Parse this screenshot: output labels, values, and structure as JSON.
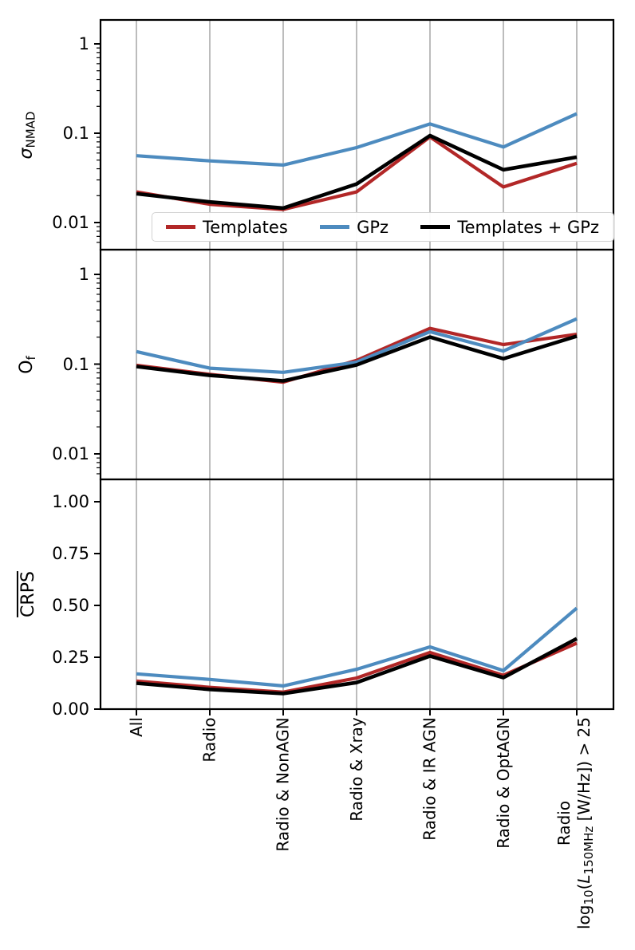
{
  "chart_data": [
    {
      "type": "line",
      "panel": "top",
      "ylabel": "sigma_NMAD",
      "ylabel_parts": {
        "symbol": "σ",
        "subscript": "NMAD"
      },
      "yscale": "log",
      "ylim": [
        0.005,
        1.8
      ],
      "ytick_labels": [
        "1",
        "0.1",
        "0.01"
      ],
      "ytick_values": [
        1,
        0.1,
        0.01
      ],
      "grid": "vertical-gridlines-on",
      "categories": [
        "All",
        "Radio",
        "Radio & NonAGN",
        "Radio & Xray",
        "Radio & IR AGN",
        "Radio & OptAGN",
        "Radio log10(L150MHz [W/Hz]) > 25"
      ],
      "series": [
        {
          "name": "Templates",
          "color": "#b22727",
          "values": [
            0.022,
            0.016,
            0.014,
            0.022,
            0.091,
            0.025,
            0.046
          ]
        },
        {
          "name": "GPz",
          "color": "#4d8bbf",
          "values": [
            0.056,
            0.049,
            0.044,
            0.069,
            0.127,
            0.07,
            0.165
          ]
        },
        {
          "name": "Templates + GPz",
          "color": "#000000",
          "values": [
            0.021,
            0.017,
            0.0145,
            0.027,
            0.094,
            0.039,
            0.054
          ]
        }
      ],
      "legend_position": "lower center"
    },
    {
      "type": "line",
      "panel": "middle",
      "ylabel": "O_f",
      "ylabel_parts": {
        "symbol": "O",
        "subscript": "f"
      },
      "yscale": "log",
      "ylim": [
        0.005,
        1.8
      ],
      "ytick_labels": [
        "1",
        "0.1",
        "0.01"
      ],
      "ytick_values": [
        1,
        0.1,
        0.01
      ],
      "grid": "vertical-gridlines-on",
      "categories": [
        "All",
        "Radio",
        "Radio & NonAGN",
        "Radio & Xray",
        "Radio & IR AGN",
        "Radio & OptAGN",
        "Radio log10(L150MHz [W/Hz]) > 25"
      ],
      "series": [
        {
          "name": "Templates",
          "color": "#b22727",
          "values": [
            0.097,
            0.077,
            0.063,
            0.11,
            0.25,
            0.165,
            0.215
          ]
        },
        {
          "name": "GPz",
          "color": "#4d8bbf",
          "values": [
            0.138,
            0.09,
            0.081,
            0.105,
            0.23,
            0.14,
            0.32
          ]
        },
        {
          "name": "Templates + GPz",
          "color": "#000000",
          "values": [
            0.094,
            0.075,
            0.065,
            0.098,
            0.2,
            0.115,
            0.205
          ]
        }
      ]
    },
    {
      "type": "line",
      "panel": "bottom",
      "ylabel": "CRPS (mean, overlined)",
      "ylabel_parts": {
        "symbol": "CRPS",
        "overline": true
      },
      "yscale": "linear",
      "ylim": [
        0.0,
        1.108
      ],
      "ytick_labels": [
        "1.00",
        "0.75",
        "0.50",
        "0.25",
        "0.00"
      ],
      "ytick_values": [
        1.0,
        0.75,
        0.5,
        0.25,
        0.0
      ],
      "grid": "vertical-gridlines-on",
      "categories": [
        "All",
        "Radio",
        "Radio & NonAGN",
        "Radio & Xray",
        "Radio & IR AGN",
        "Radio & OptAGN",
        "Radio log10(L150MHz [W/Hz]) > 25"
      ],
      "series": [
        {
          "name": "Templates",
          "color": "#b22727",
          "values": [
            0.135,
            0.105,
            0.082,
            0.15,
            0.273,
            0.163,
            0.318
          ]
        },
        {
          "name": "GPz",
          "color": "#4d8bbf",
          "values": [
            0.17,
            0.143,
            0.112,
            0.192,
            0.3,
            0.186,
            0.487
          ]
        },
        {
          "name": "Templates + GPz",
          "color": "#000000",
          "values": [
            0.125,
            0.095,
            0.075,
            0.128,
            0.256,
            0.152,
            0.34
          ]
        }
      ]
    }
  ],
  "x_axis": {
    "categories": [
      "All",
      "Radio",
      "Radio & NonAGN",
      "Radio & Xray",
      "Radio & IR AGN",
      "Radio & OptAGN"
    ],
    "last_label": {
      "line1": "Radio",
      "line2_parts": {
        "func": "log",
        "func_sub": "10",
        "open_paren": "(",
        "luminosity_symbol": "L",
        "luminosity_sub": "150MHz",
        "tail": " [W/Hz]) > 25"
      }
    }
  },
  "legend": {
    "entries": [
      {
        "label": "Templates",
        "color": "#b22727"
      },
      {
        "label": "GPz",
        "color": "#4d8bbf"
      },
      {
        "label": "Templates + GPz",
        "color": "#000000"
      }
    ]
  },
  "colors": {
    "templates": "#b22727",
    "gpz": "#4d8bbf",
    "templates_plus_gpz": "#000000",
    "gridline": "#b5b5b5",
    "spine": "#000000",
    "legend_border": "#d2d2d2"
  }
}
